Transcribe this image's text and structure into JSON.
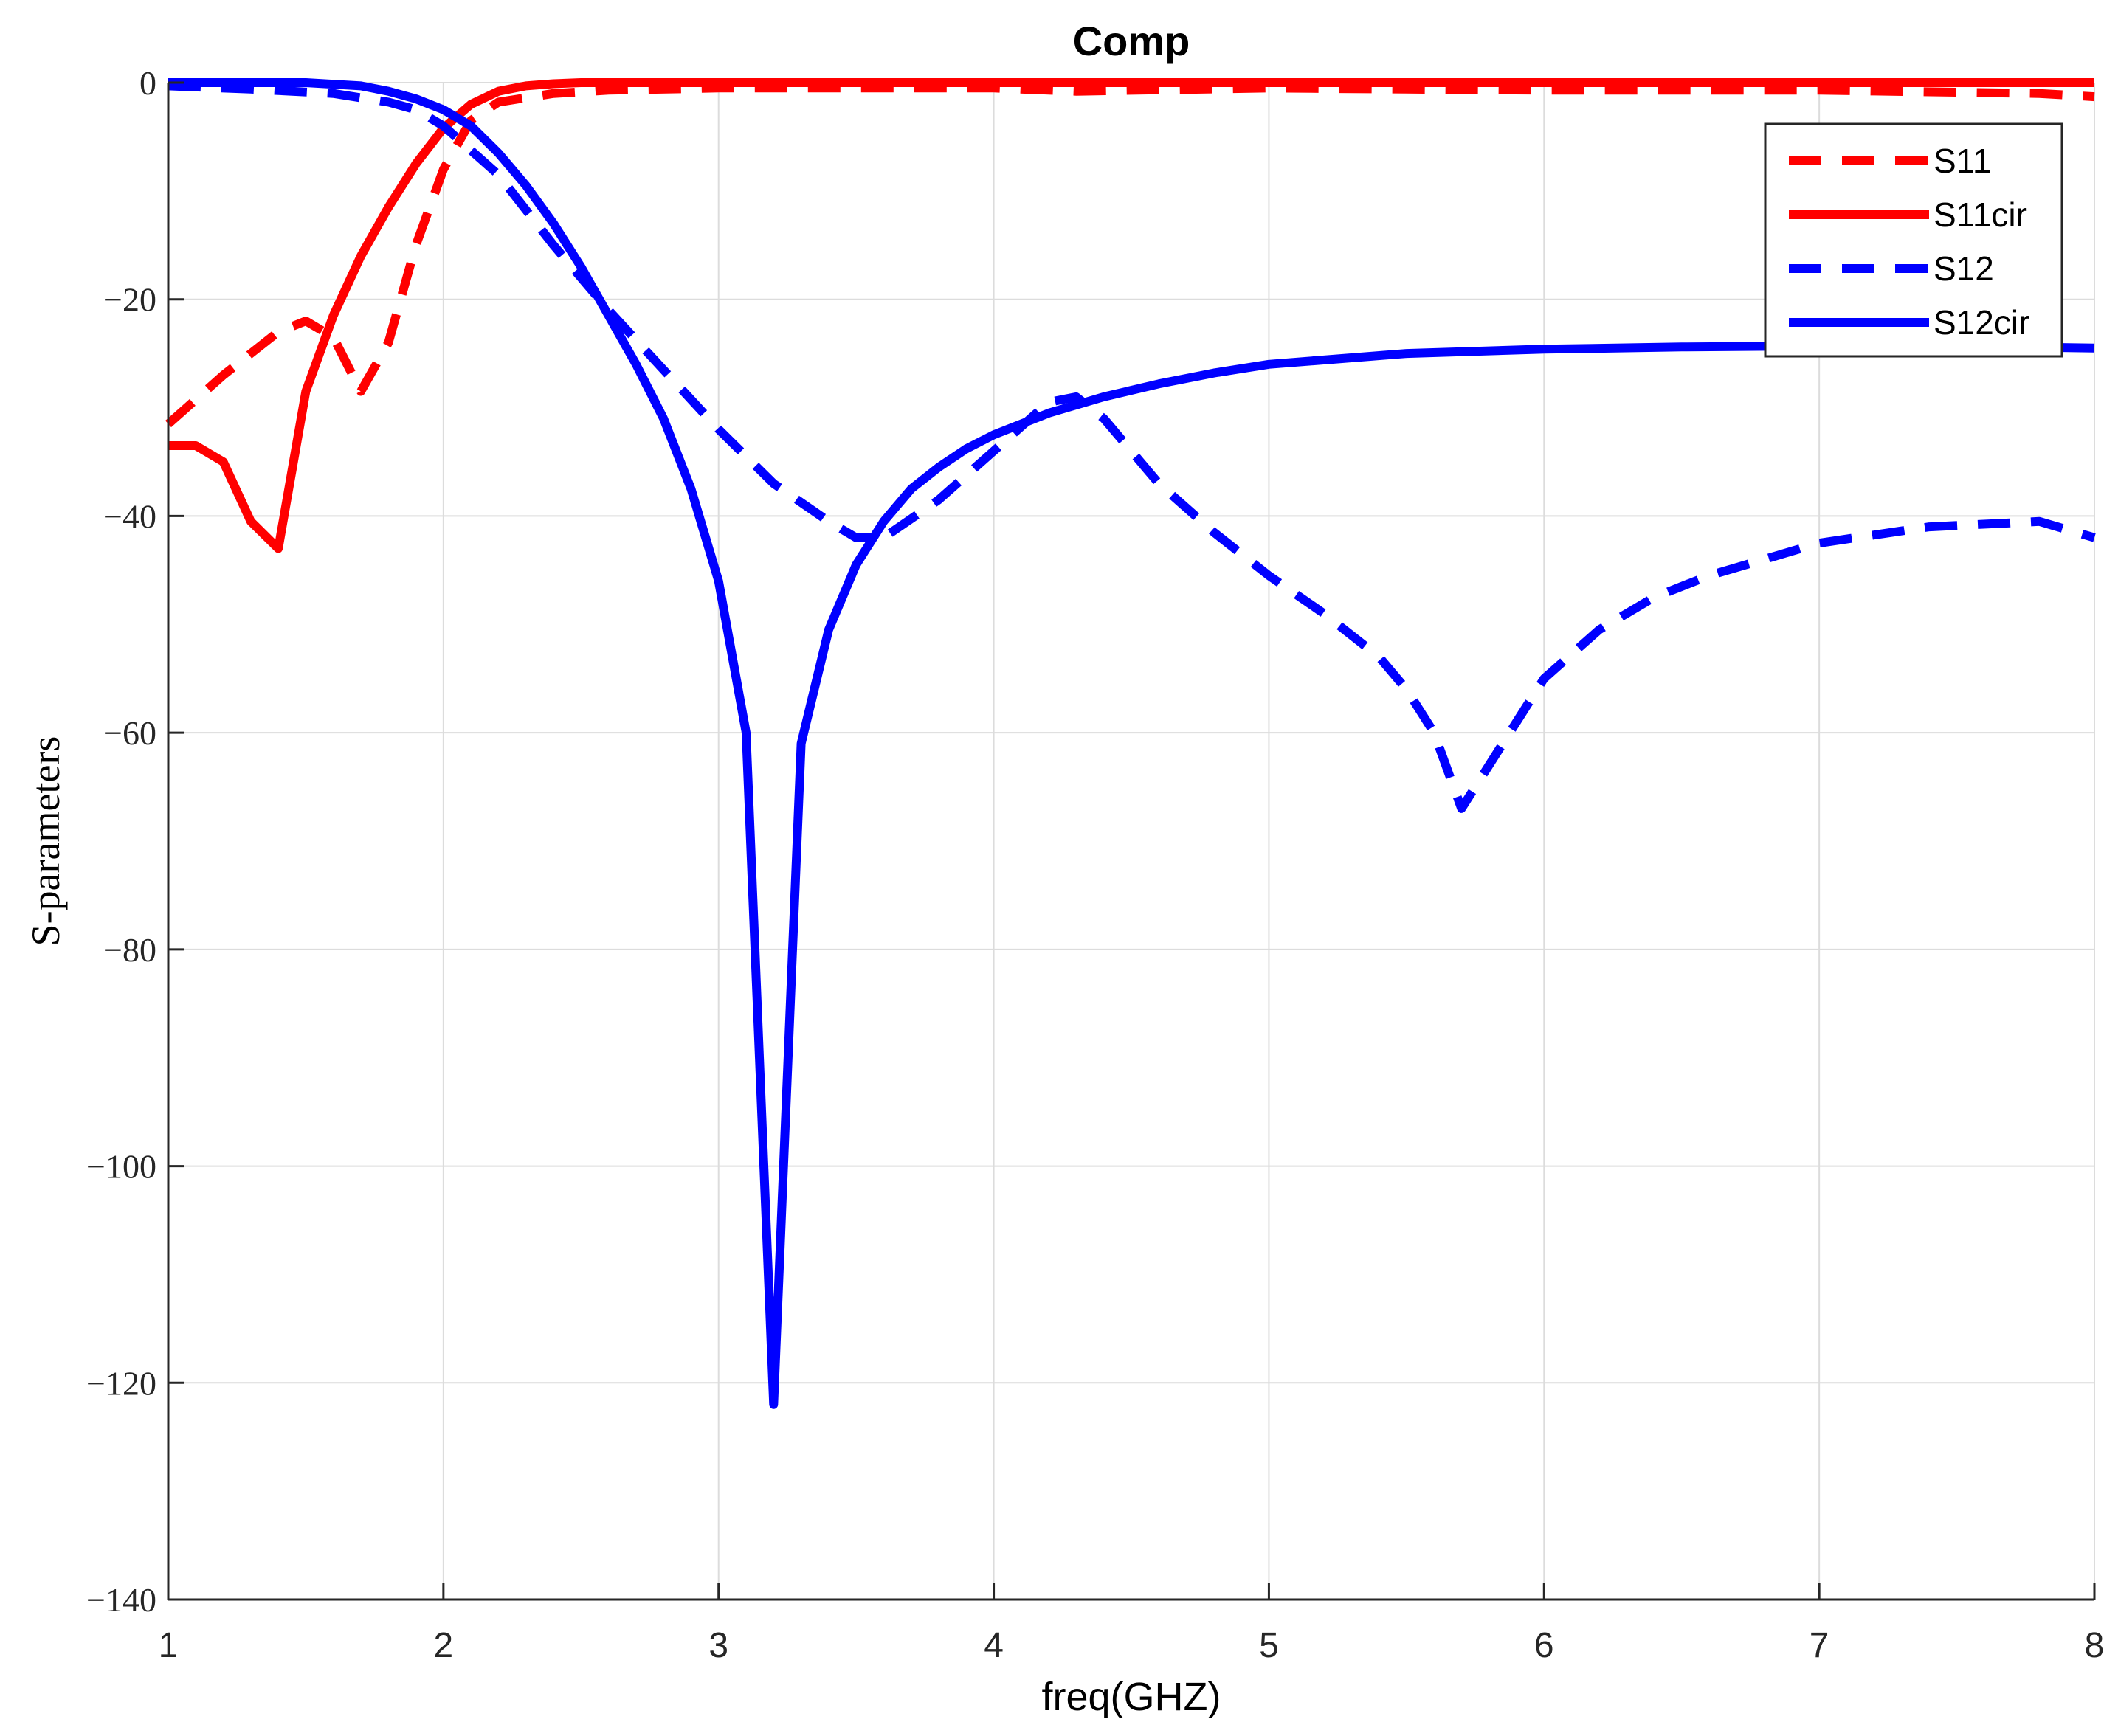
{
  "chart_data": {
    "type": "line",
    "title": "Comp",
    "xlabel": "freq(GHZ)",
    "ylabel": "S-parameters",
    "xlim": [
      1,
      8
    ],
    "ylim": [
      -140,
      0
    ],
    "xticks": [
      1,
      2,
      3,
      4,
      5,
      6,
      7,
      8
    ],
    "yticks": [
      0,
      -20,
      -40,
      -60,
      -80,
      -100,
      -120,
      -140
    ],
    "grid": true,
    "legend_position": "top-right",
    "series": [
      {
        "name": "S11",
        "color": "#ff0000",
        "style": "dashed",
        "x": [
          1.0,
          1.2,
          1.4,
          1.5,
          1.6,
          1.7,
          1.8,
          1.9,
          2.0,
          2.1,
          2.2,
          2.4,
          2.6,
          3.0,
          4.0,
          4.3,
          5.0,
          6.0,
          7.0,
          7.8,
          8.0
        ],
        "y": [
          -31.5,
          -27.0,
          -23.0,
          -22.0,
          -23.5,
          -28.5,
          -24.0,
          -15.0,
          -8.0,
          -3.5,
          -1.8,
          -1.0,
          -0.7,
          -0.5,
          -0.5,
          -0.8,
          -0.5,
          -0.7,
          -0.7,
          -1.0,
          -1.3
        ]
      },
      {
        "name": "S11cir",
        "color": "#ff0000",
        "style": "solid",
        "x": [
          1.0,
          1.1,
          1.2,
          1.3,
          1.4,
          1.5,
          1.6,
          1.7,
          1.8,
          1.9,
          2.0,
          2.1,
          2.2,
          2.3,
          2.4,
          2.5,
          2.7,
          3.0,
          4.0,
          5.0,
          6.0,
          7.0,
          8.0
        ],
        "y": [
          -33.5,
          -33.5,
          -35.0,
          -40.5,
          -43.0,
          -28.5,
          -21.5,
          -16.0,
          -11.5,
          -7.5,
          -4.2,
          -2.0,
          -0.8,
          -0.3,
          -0.1,
          0.0,
          0.0,
          0.0,
          0.0,
          0.0,
          0.0,
          0.0,
          0.0
        ]
      },
      {
        "name": "S12",
        "color": "#0000ff",
        "style": "dashed",
        "x": [
          1.0,
          1.3,
          1.6,
          1.8,
          1.9,
          2.0,
          2.2,
          2.4,
          2.6,
          2.8,
          3.0,
          3.2,
          3.4,
          3.5,
          3.6,
          3.8,
          4.0,
          4.2,
          4.3,
          4.4,
          4.6,
          4.8,
          5.0,
          5.2,
          5.4,
          5.5,
          5.6,
          5.7,
          5.8,
          6.0,
          6.2,
          6.4,
          6.6,
          7.0,
          7.4,
          7.8,
          8.0
        ],
        "y": [
          -0.3,
          -0.6,
          -1.0,
          -1.8,
          -2.5,
          -4.0,
          -8.5,
          -15.0,
          -21.0,
          -26.5,
          -32.0,
          -37.0,
          -40.5,
          -42.0,
          -42.0,
          -38.5,
          -34.0,
          -29.5,
          -29.0,
          -31.0,
          -37.0,
          -41.5,
          -45.5,
          -49.0,
          -53.0,
          -56.0,
          -60.0,
          -67.0,
          -63.0,
          -55.0,
          -50.5,
          -47.5,
          -45.5,
          -42.5,
          -41.0,
          -40.5,
          -42.0
        ]
      },
      {
        "name": "S12cir",
        "color": "#0000ff",
        "style": "solid",
        "x": [
          1.0,
          1.3,
          1.5,
          1.7,
          1.8,
          1.9,
          2.0,
          2.1,
          2.2,
          2.3,
          2.4,
          2.5,
          2.6,
          2.7,
          2.8,
          2.9,
          3.0,
          3.1,
          3.2,
          3.3,
          3.4,
          3.5,
          3.6,
          3.7,
          3.8,
          3.9,
          4.0,
          4.2,
          4.4,
          4.6,
          4.8,
          5.0,
          5.5,
          6.0,
          6.5,
          7.0,
          7.5,
          8.0
        ],
        "y": [
          0.0,
          0.0,
          0.0,
          -0.3,
          -0.8,
          -1.5,
          -2.5,
          -4.0,
          -6.5,
          -9.5,
          -13.0,
          -17.0,
          -21.5,
          -26.0,
          -31.0,
          -37.5,
          -46.0,
          -60.0,
          -122.0,
          -61.0,
          -50.5,
          -44.5,
          -40.5,
          -37.5,
          -35.5,
          -33.8,
          -32.5,
          -30.5,
          -29.0,
          -27.8,
          -26.8,
          -26.0,
          -25.0,
          -24.6,
          -24.4,
          -24.3,
          -24.3,
          -24.5
        ]
      }
    ]
  }
}
